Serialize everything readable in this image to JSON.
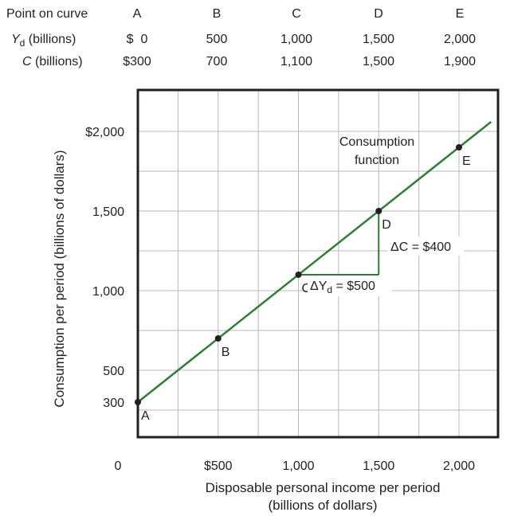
{
  "table": {
    "header_label": "Point on curve",
    "row1_label_var": "Y",
    "row1_label_sub": "d",
    "row1_label_rest": " (billions)",
    "row2_label_var": "C",
    "row2_label_rest": " (billions)",
    "points": [
      "A",
      "B",
      "C",
      "D",
      "E"
    ],
    "yd_values": [
      "$  0",
      "500",
      "1,000",
      "1,500",
      "2,000"
    ],
    "c_values": [
      "$300",
      "700",
      "1,100",
      "1,500",
      "1,900"
    ]
  },
  "chart_data": {
    "type": "line",
    "title": "",
    "xlabel_line1": "Disposable personal income per period",
    "xlabel_line2": "(billions of dollars)",
    "ylabel": "Consumption per period (billions of dollars)",
    "xlim": [
      0,
      2200
    ],
    "ylim": [
      0,
      2250
    ],
    "x_ticks": [
      {
        "value": 500,
        "label": "$500"
      },
      {
        "value": 1000,
        "label": "1,000"
      },
      {
        "value": 1500,
        "label": "1,500"
      },
      {
        "value": 2000,
        "label": "2,000"
      }
    ],
    "origin_label": "0",
    "y_ticks": [
      {
        "value": 300,
        "label": "300"
      },
      {
        "value": 500,
        "label": "500"
      },
      {
        "value": 1000,
        "label": "1,000"
      },
      {
        "value": 1500,
        "label": "1,500"
      },
      {
        "value": 2000,
        "label": "$2,000"
      }
    ],
    "grid": true,
    "grid_x_step": 250,
    "grid_y_step": 250,
    "series": [
      {
        "line_color": "#2e7d32",
        "line_x": [
          0,
          2200
        ],
        "line_y": [
          300,
          2060
        ],
        "points": [
          {
            "label": "A",
            "x": 0,
            "y": 300
          },
          {
            "label": "B",
            "x": 500,
            "y": 700
          },
          {
            "label": "C",
            "x": 1000,
            "y": 1100
          },
          {
            "label": "D",
            "x": 1500,
            "y": 1500
          },
          {
            "label": "E",
            "x": 2000,
            "y": 1900
          }
        ]
      }
    ],
    "annotations": {
      "curve_label_line1": "Consumption",
      "curve_label_line2": "function",
      "delta_c_label": "ΔC = $400",
      "delta_yd_label_prefix": "ΔY",
      "delta_yd_label_sub": "d",
      "delta_yd_label_suffix": " = $500",
      "triangle_color": "#2e7d32"
    }
  }
}
